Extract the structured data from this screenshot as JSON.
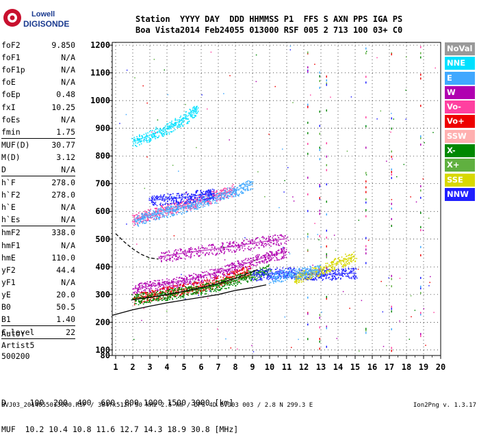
{
  "logo": {
    "line1": "Lowell",
    "line2": "DIGISONDE"
  },
  "header": {
    "labels": [
      "Station",
      "YYYY",
      "DAY",
      "DDD",
      "HHMMSS",
      "P1",
      "FFS",
      "S",
      "AXN",
      "PPS",
      "IGA",
      "PS"
    ],
    "values": [
      "Boa Vista",
      "2014",
      "Feb24",
      "055",
      "013000",
      "RSF",
      "005",
      "2",
      "713",
      "100",
      "03+",
      "C0"
    ]
  },
  "params": {
    "group1": [
      {
        "k": "foF2",
        "v": "9.850"
      },
      {
        "k": "foF1",
        "v": "N/A"
      },
      {
        "k": "foF1p",
        "v": "N/A"
      },
      {
        "k": "foE",
        "v": "N/A"
      },
      {
        "k": "foEp",
        "v": "0.48"
      },
      {
        "k": "fxI",
        "v": "10.25"
      },
      {
        "k": "foEs",
        "v": "N/A"
      },
      {
        "k": "fmin",
        "v": "1.75"
      }
    ],
    "group2": [
      {
        "k": "MUF(D)",
        "v": "30.77"
      },
      {
        "k": "M(D)",
        "v": "3.12"
      },
      {
        "k": "D",
        "v": "N/A"
      }
    ],
    "group3": [
      {
        "k": "h`F",
        "v": "278.0"
      },
      {
        "k": "h`F2",
        "v": "278.0"
      },
      {
        "k": "h`E",
        "v": "N/A"
      },
      {
        "k": "h`Es",
        "v": "N/A"
      }
    ],
    "group4": [
      {
        "k": "hmF2",
        "v": "338.0"
      },
      {
        "k": "hmF1",
        "v": "N/A"
      },
      {
        "k": "hmE",
        "v": "110.0"
      },
      {
        "k": "yF2",
        "v": "44.4"
      },
      {
        "k": "yF1",
        "v": "N/A"
      },
      {
        "k": "yE",
        "v": "20.0"
      },
      {
        "k": "B0",
        "v": "50.5"
      },
      {
        "k": "B1",
        "v": "1.40"
      }
    ],
    "group5": [
      {
        "k": "C-level",
        "v": "22"
      }
    ]
  },
  "auto": {
    "line1": "Auto:",
    "line2": "Artist5",
    "line3": "500200"
  },
  "legend": [
    {
      "label": "NoVal",
      "color": "#999999"
    },
    {
      "label": "NNE",
      "color": "#00e0ff"
    },
    {
      "label": "E",
      "color": "#40a8ff"
    },
    {
      "label": "W",
      "color": "#b000b0"
    },
    {
      "label": "Vo-",
      "color": "#ff40a0"
    },
    {
      "label": "Vo+",
      "color": "#ee0000"
    },
    {
      "label": "SSW",
      "color": "#ffb0b0"
    },
    {
      "label": "X-",
      "color": "#008800"
    },
    {
      "label": "X+",
      "color": "#60b040"
    },
    {
      "label": "SSE",
      "color": "#d8d800"
    },
    {
      "label": "NNW",
      "color": "#2020ff"
    }
  ],
  "bottom": {
    "line1": "D     100  200  400  600  800 1000 1500 3000 [km]",
    "line2": "MUF  10.2 10.4 10.8 11.6 12.7 14.3 18.9 30.8 [MHz]"
  },
  "footer": "BVJ03_2014055013000.RSF / 384fx512h 50 kHz 2.5 km / DPS-4D BVJ03 003 / 2.8 N 299.3 E",
  "version": "Ion2Png v. 1.3.17",
  "chart_data": {
    "type": "scatter",
    "x_ticks": [
      1,
      2,
      3,
      4,
      5,
      6,
      7,
      8,
      9,
      10,
      11,
      12,
      13,
      14,
      15,
      16,
      17,
      18,
      19,
      20
    ],
    "y_ticks": [
      80,
      100,
      200,
      300,
      400,
      500,
      600,
      700,
      800,
      900,
      1000,
      1100,
      1200
    ],
    "xlim": [
      0.8,
      20
    ],
    "ylim": [
      80,
      1210
    ],
    "xlabel": "",
    "ylabel": "",
    "x_unit": "MHz",
    "y_unit": "km",
    "traces": [
      {
        "name": "W",
        "color": "#b000b0",
        "points": [
          [
            2.0,
            320
          ],
          [
            3.0,
            330
          ],
          [
            4.0,
            340
          ],
          [
            5.0,
            350
          ],
          [
            6.0,
            365
          ],
          [
            7.0,
            380
          ],
          [
            8.0,
            400
          ],
          [
            9.0,
            420
          ],
          [
            10.0,
            440
          ],
          [
            11.0,
            455
          ]
        ]
      },
      {
        "name": "W",
        "color": "#b000b0",
        "points": [
          [
            3.5,
            435
          ],
          [
            5.0,
            450
          ],
          [
            6.5,
            462
          ],
          [
            8.0,
            475
          ],
          [
            9.5,
            490
          ],
          [
            11.0,
            502
          ]
        ]
      },
      {
        "name": "Vo-",
        "color": "#ff40a0",
        "points": [
          [
            2.0,
            570
          ],
          [
            3.0,
            590
          ],
          [
            4.0,
            608
          ],
          [
            5.0,
            622
          ],
          [
            6.0,
            640
          ],
          [
            7.0,
            660
          ],
          [
            8.0,
            680
          ]
        ]
      },
      {
        "name": "E",
        "color": "#40a8ff",
        "points": [
          [
            2.1,
            565
          ],
          [
            3.0,
            585
          ],
          [
            4.0,
            600
          ],
          [
            5.0,
            615
          ],
          [
            6.0,
            632
          ],
          [
            7.0,
            655
          ],
          [
            8.0,
            675
          ],
          [
            9.0,
            700
          ]
        ]
      },
      {
        "name": "NNW",
        "color": "#2020ff",
        "points": [
          [
            3.0,
            640
          ],
          [
            4.0,
            645
          ],
          [
            5.0,
            650
          ],
          [
            6.0,
            660
          ],
          [
            6.8,
            665
          ]
        ]
      },
      {
        "name": "NNE",
        "color": "#00e0ff",
        "points": [
          [
            2.0,
            850
          ],
          [
            3.0,
            875
          ],
          [
            4.0,
            900
          ],
          [
            5.0,
            935
          ],
          [
            5.8,
            970
          ]
        ]
      },
      {
        "name": "Vo+",
        "color": "#ee0000",
        "points": [
          [
            2.0,
            285
          ],
          [
            3.0,
            295
          ],
          [
            4.0,
            310
          ],
          [
            5.0,
            320
          ],
          [
            6.0,
            330
          ],
          [
            7.0,
            348
          ],
          [
            8.0,
            368
          ],
          [
            8.8,
            385
          ]
        ]
      },
      {
        "name": "X-",
        "color": "#008800",
        "points": [
          [
            2.0,
            282
          ],
          [
            3.0,
            290
          ],
          [
            4.0,
            300
          ],
          [
            5.0,
            310
          ],
          [
            6.0,
            320
          ],
          [
            7.0,
            335
          ],
          [
            8.0,
            352
          ],
          [
            9.0,
            372
          ],
          [
            10.0,
            390
          ]
        ]
      },
      {
        "name": "NNW",
        "color": "#2020ff",
        "points": [
          [
            9.0,
            370
          ],
          [
            10.0,
            375
          ],
          [
            11.0,
            380
          ],
          [
            12.0,
            375
          ],
          [
            13.0,
            372
          ],
          [
            14.0,
            375
          ],
          [
            15.0,
            378
          ]
        ]
      },
      {
        "name": "SSE",
        "color": "#d8d800",
        "points": [
          [
            11.5,
            355
          ],
          [
            12.0,
            370
          ],
          [
            13.0,
            390
          ],
          [
            14.0,
            415
          ],
          [
            15.0,
            440
          ]
        ]
      },
      {
        "name": "E",
        "color": "#40a8ff",
        "points": [
          [
            10.0,
            360
          ],
          [
            11.0,
            372
          ],
          [
            12.0,
            380
          ],
          [
            13.0,
            390
          ]
        ]
      }
    ],
    "curves": [
      {
        "name": "virtual height (dashed)",
        "style": "dashed",
        "color": "#000000",
        "points": [
          [
            1.0,
            520
          ],
          [
            1.5,
            490
          ],
          [
            2.0,
            465
          ],
          [
            2.5,
            445
          ],
          [
            3.0,
            432
          ],
          [
            3.5,
            428
          ]
        ]
      },
      {
        "name": "true height profile",
        "style": "solid",
        "color": "#000000",
        "points": [
          [
            0.8,
            225
          ],
          [
            2.0,
            245
          ],
          [
            3.0,
            258
          ],
          [
            4.0,
            270
          ],
          [
            5.0,
            280
          ],
          [
            6.0,
            290
          ],
          [
            7.0,
            300
          ],
          [
            8.0,
            315
          ],
          [
            9.0,
            325
          ],
          [
            9.8,
            335
          ]
        ]
      },
      {
        "name": "o-trace fit",
        "style": "solid",
        "color": "#000000",
        "points": [
          [
            1.9,
            280
          ],
          [
            3.0,
            290
          ],
          [
            4.0,
            300
          ],
          [
            5.0,
            312
          ],
          [
            6.0,
            325
          ],
          [
            7.0,
            340
          ],
          [
            8.0,
            358
          ],
          [
            8.8,
            378
          ],
          [
            9.3,
            390
          ]
        ]
      }
    ]
  }
}
